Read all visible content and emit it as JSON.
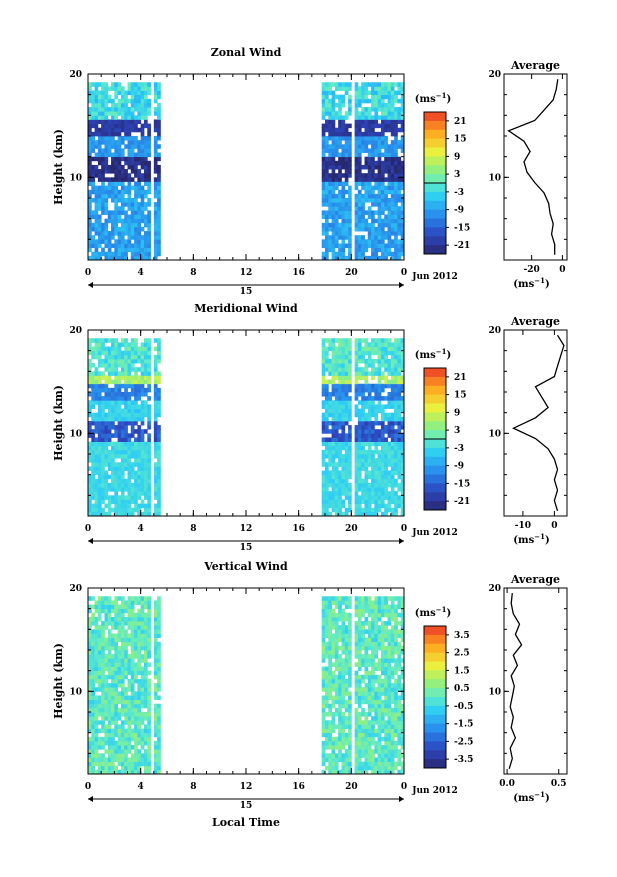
{
  "chart_data": [
    {
      "type": "heatmap",
      "title": "Zonal Wind",
      "ylabel": "Height (km)",
      "xlabel": "",
      "x_ticks": [
        "0",
        "4",
        "8",
        "12",
        "16",
        "20",
        "0"
      ],
      "x_range": [
        0,
        24
      ],
      "y_ticks": [
        "20",
        "10"
      ],
      "y_range": [
        2,
        20
      ],
      "day_label": "15",
      "date_label": "Jun 2012",
      "units": "(ms",
      "units_exp": "−1",
      "units_close": ")",
      "colorbar": {
        "ticks": [
          "21",
          "15",
          "9",
          "3",
          "-3",
          "-9",
          "-15",
          "-21"
        ],
        "values": [
          21,
          15,
          9,
          3,
          -3,
          -9,
          -15,
          -21
        ],
        "range": [
          -24,
          24
        ]
      },
      "data_gaps_hours": [
        [
          5.3,
          17.7
        ]
      ],
      "profile": {
        "title": "Average",
        "x_ticks": [
          "-20",
          "0"
        ],
        "x_values": [
          -20,
          0
        ],
        "x_range": [
          -38,
          3
        ],
        "y_ticks": [
          "20",
          "10"
        ],
        "units": "(ms",
        "units_exp": "−1",
        "units_close": ")",
        "points": [
          [
            -5,
            2.5
          ],
          [
            -5,
            3.5
          ],
          [
            -7,
            4.5
          ],
          [
            -6,
            5.5
          ],
          [
            -8,
            6.5
          ],
          [
            -9,
            7.5
          ],
          [
            -12,
            8.5
          ],
          [
            -18,
            9.5
          ],
          [
            -23,
            10.5
          ],
          [
            -25,
            11.5
          ],
          [
            -21,
            12.5
          ],
          [
            -25,
            13.5
          ],
          [
            -35,
            14.5
          ],
          [
            -18,
            15.5
          ],
          [
            -12,
            16.5
          ],
          [
            -6,
            17.5
          ],
          [
            -4,
            18.5
          ],
          [
            -3,
            19.5
          ]
        ]
      }
    },
    {
      "type": "heatmap",
      "title": "Meridional Wind",
      "ylabel": "Height (km)",
      "xlabel": "",
      "x_ticks": [
        "0",
        "4",
        "8",
        "12",
        "16",
        "20",
        "0"
      ],
      "x_range": [
        0,
        24
      ],
      "y_ticks": [
        "20",
        "10"
      ],
      "y_range": [
        2,
        20
      ],
      "day_label": "15",
      "date_label": "Jun 2012",
      "units": "(ms",
      "units_exp": "−1",
      "units_close": ")",
      "colorbar": {
        "ticks": [
          "21",
          "15",
          "9",
          "3",
          "-3",
          "-9",
          "-15",
          "-21"
        ],
        "values": [
          21,
          15,
          9,
          3,
          -3,
          -9,
          -15,
          -21
        ],
        "range": [
          -24,
          24
        ]
      },
      "data_gaps_hours": [
        [
          5.3,
          17.7
        ]
      ],
      "profile": {
        "title": "Average",
        "x_ticks": [
          "-10",
          "0"
        ],
        "x_values": [
          -10,
          0
        ],
        "x_range": [
          -16,
          4
        ],
        "y_ticks": [
          "20",
          "10"
        ],
        "units": "(ms",
        "units_exp": "−1",
        "units_close": ")",
        "points": [
          [
            1,
            2.5
          ],
          [
            0,
            3.5
          ],
          [
            1,
            4.5
          ],
          [
            0,
            5.5
          ],
          [
            1,
            6.5
          ],
          [
            0,
            7.5
          ],
          [
            -2,
            8.5
          ],
          [
            -6,
            9.5
          ],
          [
            -13,
            10.5
          ],
          [
            -6,
            11.5
          ],
          [
            -2,
            12.5
          ],
          [
            -4,
            13.5
          ],
          [
            -6,
            14.5
          ],
          [
            0,
            15.5
          ],
          [
            1,
            16.5
          ],
          [
            2,
            17.5
          ],
          [
            3,
            18.5
          ],
          [
            1,
            19.5
          ]
        ]
      }
    },
    {
      "type": "heatmap",
      "title": "Vertical Wind",
      "ylabel": "Height (km)",
      "xlabel": "Local Time",
      "x_ticks": [
        "0",
        "4",
        "8",
        "12",
        "16",
        "20",
        "0"
      ],
      "x_range": [
        0,
        24
      ],
      "y_ticks": [
        "20",
        "10"
      ],
      "y_range": [
        2,
        20
      ],
      "day_label": "15",
      "date_label": "Jun 2012",
      "units": "(ms",
      "units_exp": "−1",
      "units_close": ")",
      "colorbar": {
        "ticks": [
          "3.5",
          "2.5",
          "1.5",
          "0.5",
          "-0.5",
          "-1.5",
          "-2.5",
          "-3.5"
        ],
        "values": [
          3.5,
          2.5,
          1.5,
          0.5,
          -0.5,
          -1.5,
          -2.5,
          -3.5
        ],
        "range": [
          -4,
          4
        ]
      },
      "data_gaps_hours": [
        [
          5.3,
          17.7
        ]
      ],
      "profile": {
        "title": "Average",
        "x_ticks": [
          "0.0",
          "0.5"
        ],
        "x_values": [
          0.0,
          0.5
        ],
        "x_range": [
          -0.03,
          0.58
        ],
        "y_ticks": [
          "20",
          "10"
        ],
        "units": "(ms",
        "units_exp": "−1",
        "units_close": ")",
        "points": [
          [
            0.02,
            2.5
          ],
          [
            0.05,
            3.5
          ],
          [
            0.03,
            4.5
          ],
          [
            0.08,
            5.5
          ],
          [
            0.04,
            6.5
          ],
          [
            0.06,
            7.5
          ],
          [
            0.03,
            8.5
          ],
          [
            0.05,
            9.5
          ],
          [
            0.07,
            10.5
          ],
          [
            0.04,
            11.5
          ],
          [
            0.1,
            12.5
          ],
          [
            0.06,
            13.5
          ],
          [
            0.14,
            14.5
          ],
          [
            0.08,
            15.5
          ],
          [
            0.12,
            16.5
          ],
          [
            0.06,
            17.5
          ],
          [
            0.04,
            18.5
          ],
          [
            0.05,
            19.5
          ]
        ]
      }
    }
  ]
}
